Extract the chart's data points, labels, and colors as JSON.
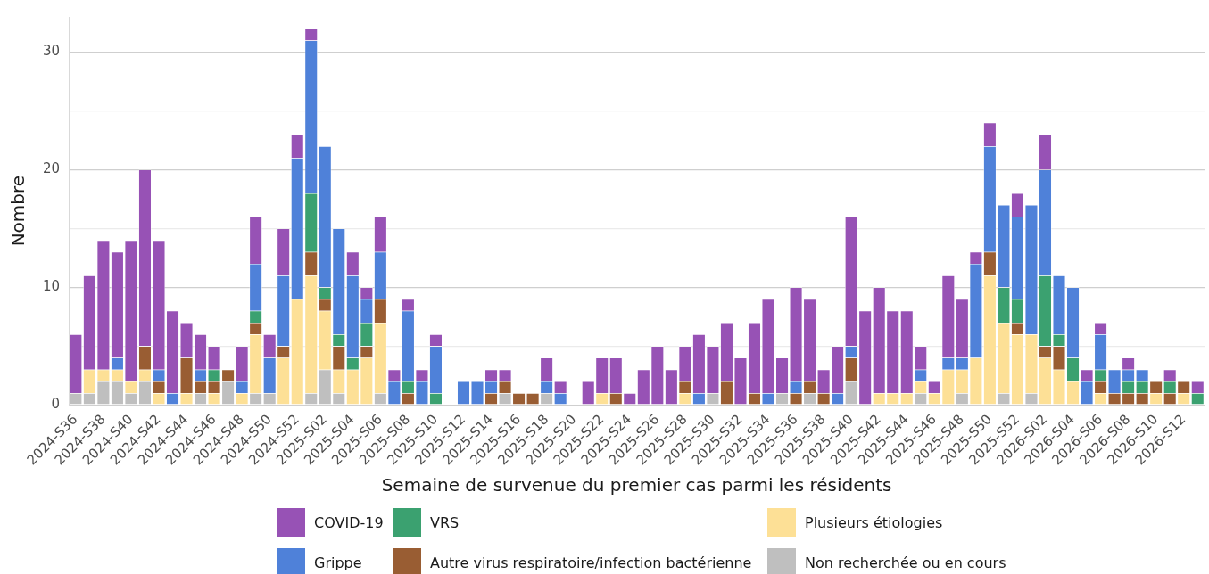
{
  "chart_data": {
    "type": "bar",
    "xlabel": "Semaine de survenue du premier cas parmi les résidents",
    "ylabel": "Nombre",
    "categories": [
      "2024-S36",
      null,
      "2024-S38",
      null,
      "2024-S40",
      null,
      "2024-S42",
      null,
      "2024-S44",
      null,
      "2024-S46",
      null,
      "2024-S48",
      null,
      "2024-S50",
      null,
      "2024-S52",
      null,
      "2025-S02",
      null,
      "2025-S04",
      null,
      "2025-S06",
      null,
      "2025-S08",
      null,
      "2025-S10",
      null,
      "2025-S12",
      null,
      "2025-S14",
      null,
      "2025-S16",
      null,
      "2025-S18",
      null,
      "2025-S20",
      null,
      "2025-S22",
      null,
      "2025-S24",
      null,
      "2025-S26",
      null,
      "2025-S28",
      null,
      "2025-S30",
      null,
      "2025-S32",
      null,
      "2025-S34",
      null,
      "2025-S36",
      null,
      "2025-S38",
      null,
      "2025-S40",
      null,
      "2025-S42",
      null,
      "2025-S44",
      null,
      "2025-S46",
      null,
      "2025-S48",
      null,
      "2025-S50",
      null,
      "2025-S52",
      null,
      "2026-S02",
      null,
      "2026-S04",
      null,
      "2026-S06",
      null,
      "2026-S08",
      null,
      "2026-S10",
      null,
      "2026-S12",
      null
    ],
    "stacked": true,
    "series": [
      {
        "name": "Non recherchée ou en cours",
        "color": "#bfbfbf",
        "values": [
          1,
          1,
          2,
          2,
          1,
          2,
          0,
          0,
          0,
          1,
          0,
          2,
          0,
          1,
          1,
          0,
          0,
          1,
          3,
          1,
          0,
          0,
          1,
          0,
          0,
          0,
          0,
          0,
          0,
          0,
          0,
          1,
          0,
          0,
          1,
          0,
          0,
          0,
          0,
          0,
          0,
          0,
          0,
          0,
          0,
          0,
          1,
          0,
          0,
          0,
          0,
          1,
          0,
          1,
          0,
          0,
          2,
          0,
          0,
          0,
          0,
          1,
          0,
          0,
          1,
          0,
          0,
          1,
          0,
          1,
          0,
          0,
          0,
          0,
          0,
          0,
          0,
          0,
          0,
          0,
          0,
          0
        ]
      },
      {
        "name": "Plusieurs étiologies",
        "color": "#fde096",
        "values": [
          0,
          2,
          1,
          1,
          1,
          1,
          1,
          0,
          1,
          0,
          1,
          0,
          1,
          5,
          0,
          4,
          9,
          10,
          5,
          2,
          3,
          4,
          6,
          0,
          0,
          0,
          0,
          0,
          0,
          0,
          0,
          0,
          0,
          0,
          0,
          0,
          0,
          0,
          1,
          0,
          0,
          0,
          0,
          0,
          1,
          0,
          0,
          0,
          0,
          0,
          0,
          0,
          0,
          0,
          0,
          0,
          0,
          0,
          1,
          1,
          1,
          1,
          1,
          3,
          2,
          4,
          11,
          6,
          6,
          5,
          4,
          3,
          2,
          0,
          1,
          0,
          0,
          0,
          1,
          0,
          1,
          0
        ]
      },
      {
        "name": "Autre virus respiratoire/infection bactérienne",
        "color": "#995d33",
        "values": [
          0,
          0,
          0,
          0,
          0,
          2,
          1,
          0,
          3,
          1,
          1,
          1,
          0,
          1,
          0,
          1,
          0,
          2,
          1,
          2,
          0,
          1,
          2,
          0,
          1,
          0,
          0,
          0,
          0,
          0,
          1,
          1,
          1,
          1,
          0,
          0,
          0,
          0,
          0,
          1,
          0,
          0,
          0,
          0,
          1,
          0,
          0,
          2,
          0,
          1,
          0,
          0,
          1,
          1,
          1,
          0,
          2,
          0,
          0,
          0,
          0,
          0,
          0,
          0,
          0,
          0,
          2,
          0,
          1,
          0,
          1,
          2,
          0,
          0,
          1,
          1,
          1,
          1,
          1,
          1,
          1,
          0
        ]
      },
      {
        "name": "VRS",
        "color": "#3ba170",
        "values": [
          0,
          0,
          0,
          0,
          0,
          0,
          0,
          0,
          0,
          0,
          1,
          0,
          0,
          1,
          0,
          0,
          0,
          5,
          1,
          1,
          1,
          2,
          0,
          0,
          1,
          0,
          1,
          0,
          0,
          0,
          0,
          0,
          0,
          0,
          0,
          0,
          0,
          0,
          0,
          0,
          0,
          0,
          0,
          0,
          0,
          0,
          0,
          0,
          0,
          0,
          0,
          0,
          0,
          0,
          0,
          0,
          0,
          0,
          0,
          0,
          0,
          0,
          0,
          0,
          0,
          0,
          0,
          3,
          2,
          0,
          6,
          1,
          2,
          0,
          1,
          0,
          1,
          1,
          0,
          1,
          0,
          1
        ]
      },
      {
        "name": "Grippe",
        "color": "#4f81d9",
        "values": [
          0,
          0,
          0,
          1,
          0,
          0,
          1,
          1,
          0,
          1,
          0,
          0,
          1,
          4,
          3,
          6,
          12,
          13,
          12,
          9,
          7,
          2,
          4,
          2,
          6,
          2,
          4,
          0,
          2,
          2,
          1,
          0,
          0,
          0,
          1,
          1,
          0,
          0,
          0,
          0,
          0,
          0,
          0,
          0,
          0,
          1,
          0,
          0,
          0,
          0,
          1,
          0,
          1,
          0,
          0,
          1,
          1,
          0,
          0,
          0,
          0,
          1,
          0,
          1,
          1,
          8,
          9,
          7,
          7,
          11,
          9,
          5,
          6,
          2,
          3,
          2,
          1,
          1,
          0,
          0,
          0,
          0
        ]
      },
      {
        "name": "COVID-19",
        "color": "#9752b5",
        "values": [
          5,
          8,
          11,
          9,
          12,
          15,
          11,
          7,
          3,
          3,
          2,
          0,
          3,
          4,
          2,
          4,
          2,
          1,
          0,
          0,
          2,
          1,
          3,
          1,
          1,
          1,
          1,
          0,
          0,
          0,
          1,
          1,
          0,
          0,
          2,
          1,
          0,
          2,
          3,
          3,
          1,
          3,
          5,
          3,
          3,
          5,
          4,
          5,
          4,
          6,
          8,
          3,
          8,
          7,
          2,
          4,
          11,
          8,
          9,
          7,
          7,
          2,
          1,
          7,
          5,
          1,
          2,
          0,
          2,
          0,
          3,
          0,
          0,
          1,
          1,
          0,
          1,
          0,
          0,
          1,
          0,
          1
        ]
      }
    ],
    "ylim": [
      0,
      33
    ],
    "yticks": [
      0,
      {
        "value": 5,
        "label": null
      },
      10,
      {
        "value": 15,
        "label": null
      },
      20,
      {
        "value": 25,
        "label": null
      },
      30
    ],
    "grid": "y",
    "legend": "bottom"
  }
}
